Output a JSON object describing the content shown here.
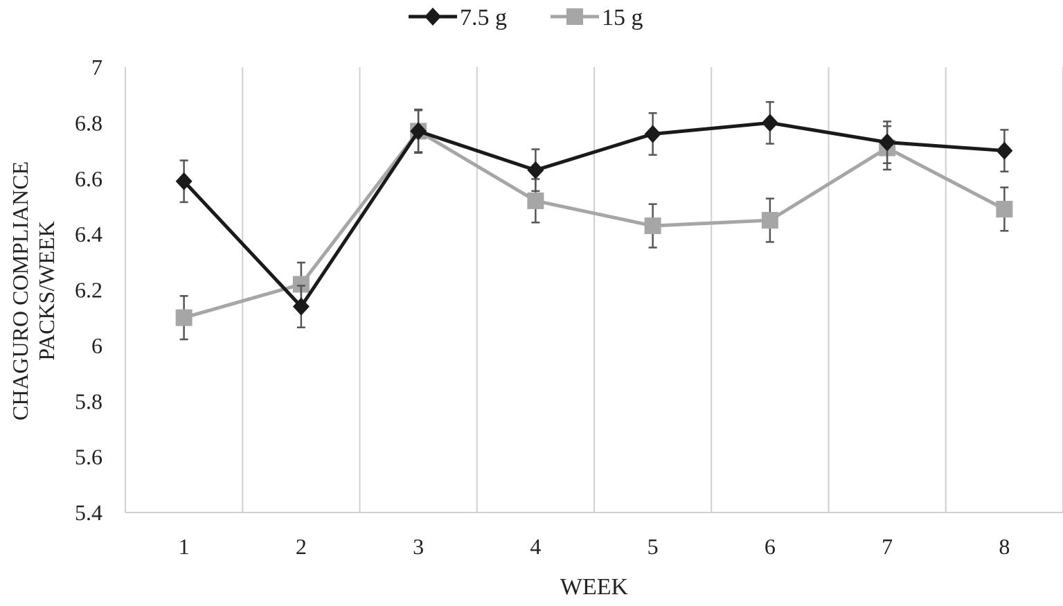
{
  "chart_data": {
    "type": "line",
    "title": "",
    "xlabel": "WEEK",
    "ylabel_lines": [
      "CHAGURO COMPLIANCE",
      "PACKS/WEEK"
    ],
    "categories": [
      "1",
      "2",
      "3",
      "4",
      "5",
      "6",
      "7",
      "8"
    ],
    "ylim": [
      5.4,
      7
    ],
    "yticks": [
      "5.4",
      "5.6",
      "5.8",
      "6",
      "6.2",
      "6.4",
      "6.6",
      "6.8",
      "7"
    ],
    "grid": "vertical",
    "legend_position": "top",
    "series": [
      {
        "name": "7.5 g",
        "color": "#1a1a1a",
        "marker": "diamond",
        "values": [
          6.59,
          6.14,
          6.77,
          6.63,
          6.76,
          6.8,
          6.73,
          6.7
        ],
        "error": [
          0.075,
          0.075,
          0.075,
          0.075,
          0.075,
          0.075,
          0.075,
          0.075
        ]
      },
      {
        "name": "15 g",
        "color": "#a6a6a6",
        "marker": "square",
        "values": [
          6.1,
          6.22,
          6.77,
          6.52,
          6.43,
          6.45,
          6.71,
          6.49
        ],
        "error": [
          0.078,
          0.078,
          0.078,
          0.078,
          0.078,
          0.078,
          0.078,
          0.078
        ]
      }
    ]
  }
}
